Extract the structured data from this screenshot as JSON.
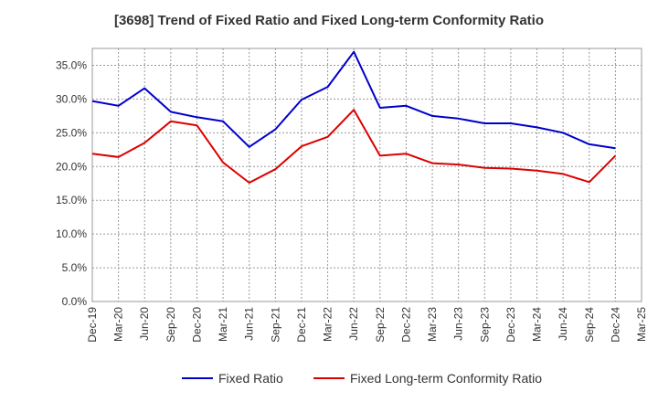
{
  "chart_data": {
    "type": "line",
    "title": "[3698]  Trend of Fixed Ratio and Fixed Long-term Conformity Ratio",
    "xlabel": "",
    "ylabel": "",
    "ylim": [
      0,
      37.5
    ],
    "yticks": [
      "0.0%",
      "5.0%",
      "10.0%",
      "15.0%",
      "20.0%",
      "25.0%",
      "30.0%",
      "35.0%"
    ],
    "x": [
      "Dec-19",
      "Mar-20",
      "Jun-20",
      "Sep-20",
      "Dec-20",
      "Mar-21",
      "Jun-21",
      "Sep-21",
      "Dec-21",
      "Mar-22",
      "Jun-22",
      "Sep-22",
      "Dec-22",
      "Mar-23",
      "Jun-23",
      "Sep-23",
      "Dec-23",
      "Mar-24",
      "Jun-24",
      "Sep-24",
      "Dec-24",
      "Mar-25"
    ],
    "grid": true,
    "legend_position": "bottom",
    "series": [
      {
        "name": "Fixed Ratio",
        "color": "#0000cc",
        "values": [
          29.7,
          29.0,
          31.6,
          28.1,
          27.3,
          26.7,
          22.9,
          25.5,
          29.9,
          31.8,
          37.0,
          28.7,
          29.0,
          27.5,
          27.1,
          26.4,
          26.4,
          25.8,
          25.0,
          23.3,
          22.7,
          null
        ]
      },
      {
        "name": "Fixed Long-term Conformity Ratio",
        "color": "#dd0000",
        "values": [
          21.9,
          21.4,
          23.5,
          26.7,
          26.1,
          20.6,
          17.6,
          19.6,
          23.0,
          24.4,
          28.4,
          21.6,
          21.9,
          20.5,
          20.3,
          19.8,
          19.7,
          19.4,
          18.9,
          17.7,
          21.6,
          null
        ]
      }
    ]
  }
}
